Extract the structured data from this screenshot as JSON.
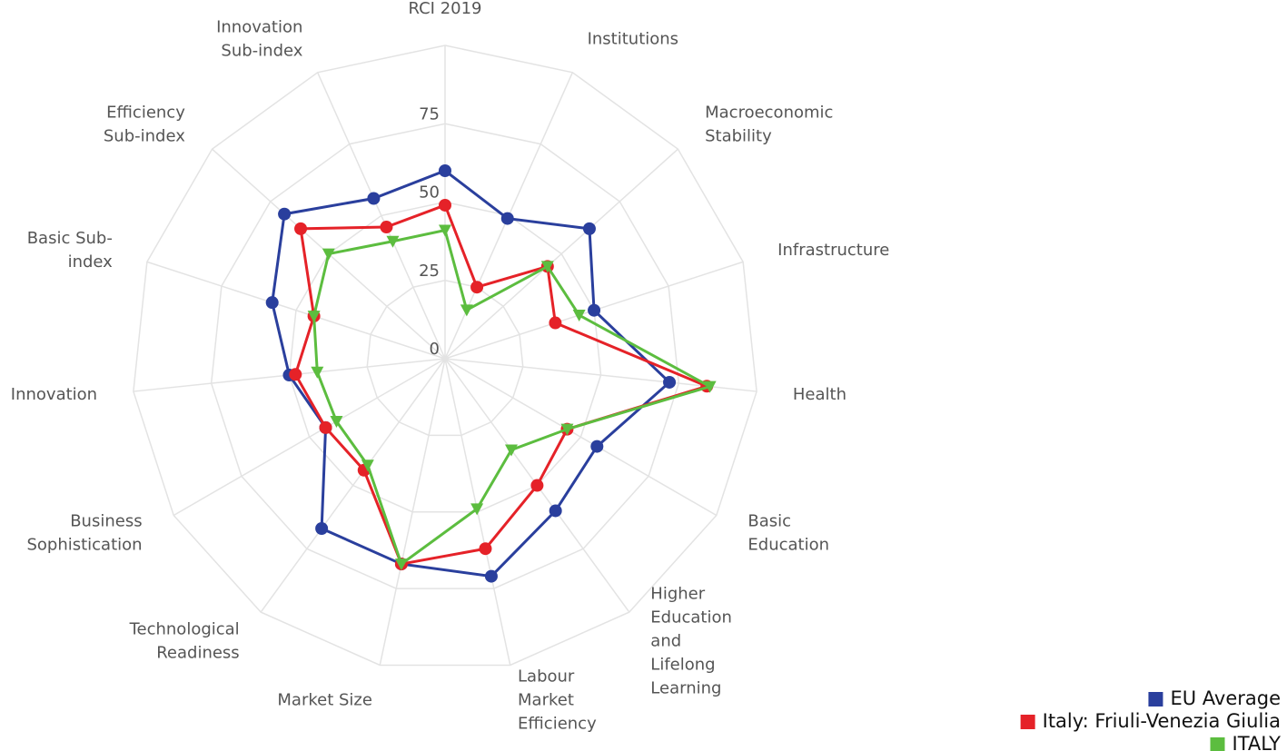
{
  "chart_data": {
    "type": "radar",
    "categories": [
      [
        "RCI 2019"
      ],
      [
        "Institutions"
      ],
      [
        "Macroeconomic",
        "Stability"
      ],
      [
        "Infrastructure"
      ],
      [
        "Health"
      ],
      [
        "Basic",
        "Education"
      ],
      [
        "Higher",
        "Education",
        "and",
        "Lifelong",
        "Learning"
      ],
      [
        "Labour",
        "Market",
        "Efficiency"
      ],
      [
        "Market Size"
      ],
      [
        "Technological",
        "Readiness"
      ],
      [
        "Business",
        "Sophistication"
      ],
      [
        "Innovation"
      ],
      [
        "Basic Sub-",
        "index"
      ],
      [
        "Efficiency",
        "Sub-index"
      ],
      [
        "Innovation",
        "Sub-index"
      ]
    ],
    "series": [
      {
        "name": "EU Average",
        "color": "#2a3f9d",
        "marker": "circle",
        "values": [
          60,
          49,
          62,
          50,
          72,
          56,
          60,
          71,
          67,
          67,
          44,
          50,
          58,
          69,
          56
        ]
      },
      {
        "name": "Italy: Friuli-Venezia Giulia",
        "color": "#e52228",
        "marker": "circle",
        "values": [
          49,
          25,
          44,
          37,
          84,
          45,
          50,
          62,
          67,
          44,
          44,
          48,
          44,
          62,
          46
        ]
      },
      {
        "name": "ITALY",
        "color": "#5cbd3f",
        "marker": "triangle-down",
        "values": [
          41,
          17,
          44,
          45,
          85,
          45,
          36,
          49,
          67,
          42,
          40,
          41,
          44,
          50,
          41
        ]
      }
    ],
    "ylim": [
      0,
      100
    ],
    "yticks": [
      0,
      25,
      50,
      75
    ],
    "grid": true,
    "legend": "bottom-right"
  }
}
